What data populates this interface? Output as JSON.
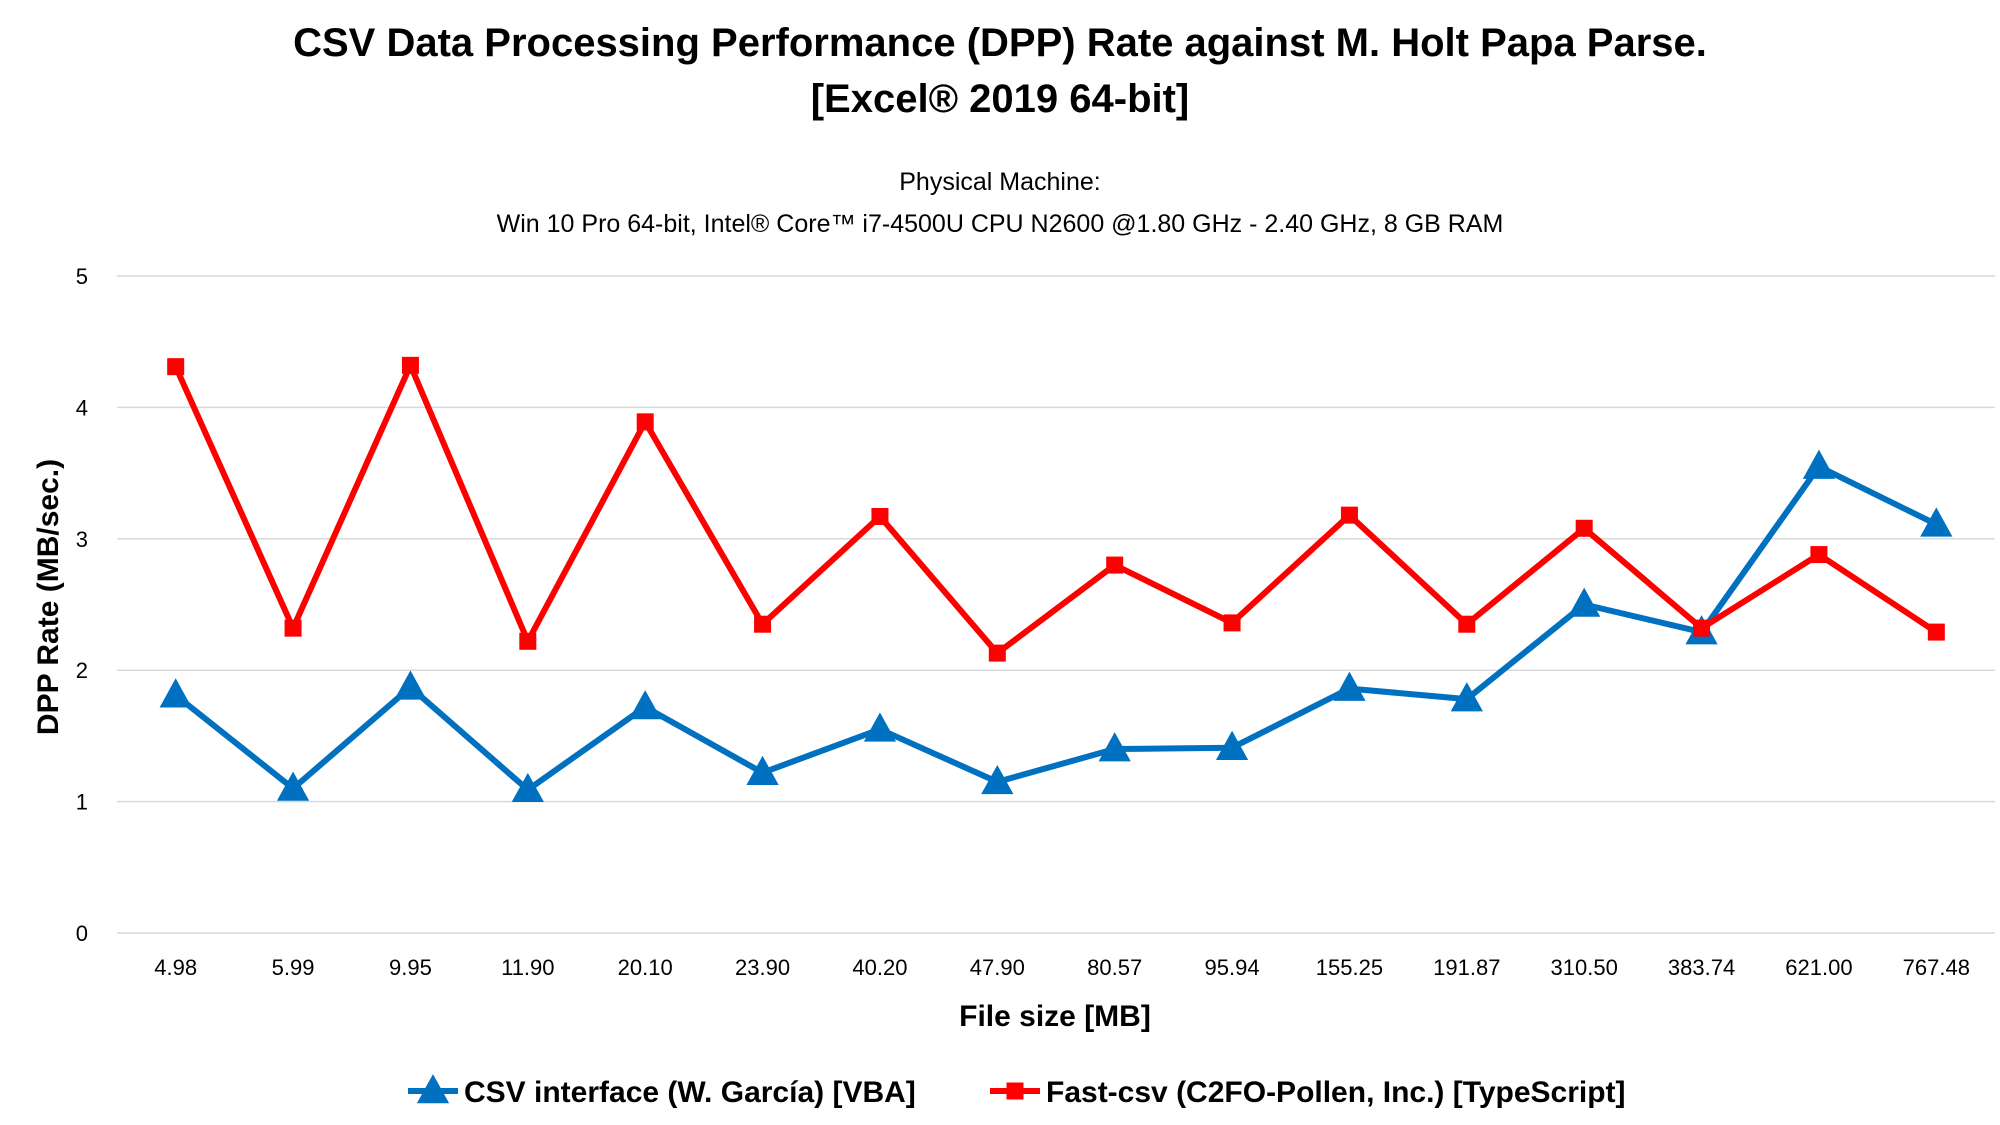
{
  "chart_data": {
    "type": "line",
    "title": "CSV Data Processing Performance (DPP) Rate against M. Holt Papa Parse.",
    "title_line2": "[Excel® 2019 64-bit]",
    "subtitle": "Physical Machine:",
    "subtitle_line2": "Win 10 Pro 64-bit, Intel® Core™ i7-4500U CPU N2600 @1.80 GHz - 2.40 GHz, 8 GB RAM",
    "xlabel": "File size [MB]",
    "ylabel": "DPP Rate (MB/sec.)",
    "categories": [
      "4.98",
      "5.99",
      "9.95",
      "11.90",
      "20.10",
      "23.90",
      "40.20",
      "47.90",
      "80.57",
      "95.94",
      "155.25",
      "191.87",
      "310.50",
      "383.74",
      "621.00",
      "767.48"
    ],
    "ylim": [
      0,
      5
    ],
    "yticks": [
      "0",
      "1",
      "2",
      "3",
      "4",
      "5"
    ],
    "grid": true,
    "legend_position": "bottom",
    "series": [
      {
        "name": "CSV interface (W. García) [VBA]",
        "color": "#0070C0",
        "marker": "triangle",
        "values": [
          1.81,
          1.1,
          1.87,
          1.09,
          1.72,
          1.22,
          1.55,
          1.15,
          1.4,
          1.41,
          1.86,
          1.78,
          2.5,
          2.29,
          3.55,
          3.11
        ]
      },
      {
        "name": "Fast-csv (C2FO-Pollen, Inc.) [TypeScript]",
        "color": "#FF0000",
        "marker": "square",
        "values": [
          4.31,
          2.32,
          4.32,
          2.22,
          3.89,
          2.35,
          3.17,
          2.13,
          2.8,
          2.36,
          3.18,
          2.35,
          3.08,
          2.32,
          2.88,
          2.29
        ]
      }
    ]
  }
}
